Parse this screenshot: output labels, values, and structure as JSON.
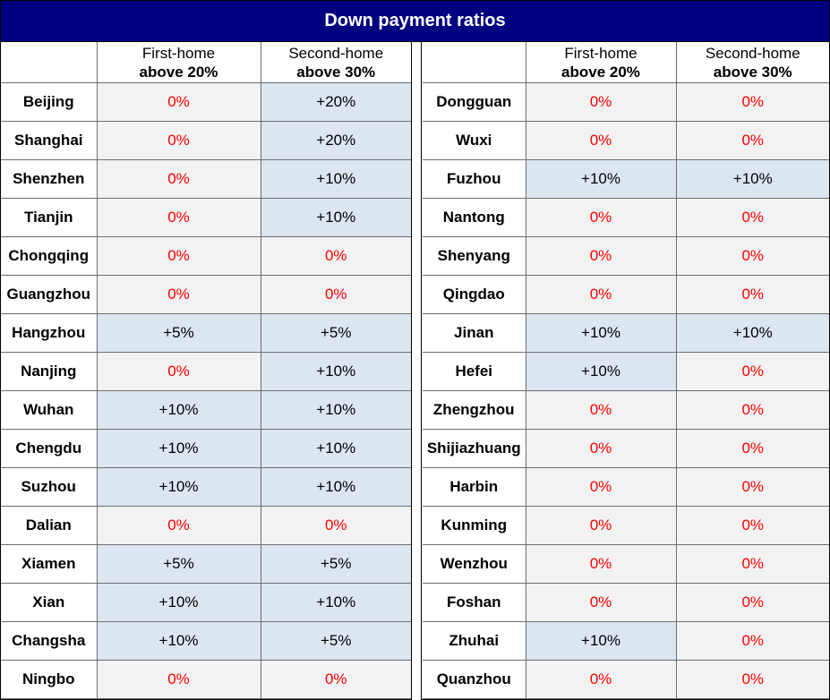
{
  "title": "Down payment ratios",
  "columns": {
    "first_home_line1": "First-home",
    "first_home_line2": "above 20%",
    "second_home_line1": "Second-home",
    "second_home_line2": "above 30%"
  },
  "colors": {
    "header_bg": "#000080",
    "highlight_bg": "#dce6f1",
    "plain_bg": "#f2f2f2",
    "zero_text": "#ff0000"
  },
  "left_rows": [
    {
      "city": "Beijing",
      "first": "0%",
      "second": "+20%"
    },
    {
      "city": "Shanghai",
      "first": "0%",
      "second": "+20%"
    },
    {
      "city": "Shenzhen",
      "first": "0%",
      "second": "+10%"
    },
    {
      "city": "Tianjin",
      "first": "0%",
      "second": "+10%"
    },
    {
      "city": "Chongqing",
      "first": "0%",
      "second": "0%"
    },
    {
      "city": "Guangzhou",
      "first": "0%",
      "second": "0%"
    },
    {
      "city": "Hangzhou",
      "first": "+5%",
      "second": "+5%"
    },
    {
      "city": "Nanjing",
      "first": "0%",
      "second": "+10%"
    },
    {
      "city": "Wuhan",
      "first": "+10%",
      "second": "+10%"
    },
    {
      "city": "Chengdu",
      "first": "+10%",
      "second": "+10%"
    },
    {
      "city": "Suzhou",
      "first": "+10%",
      "second": "+10%"
    },
    {
      "city": "Dalian",
      "first": "0%",
      "second": "0%"
    },
    {
      "city": "Xiamen",
      "first": "+5%",
      "second": "+5%"
    },
    {
      "city": "Xian",
      "first": "+10%",
      "second": "+10%"
    },
    {
      "city": "Changsha",
      "first": "+10%",
      "second": "+5%"
    },
    {
      "city": "Ningbo",
      "first": "0%",
      "second": "0%"
    }
  ],
  "right_rows": [
    {
      "city": "Dongguan",
      "first": "0%",
      "second": "0%"
    },
    {
      "city": "Wuxi",
      "first": "0%",
      "second": "0%"
    },
    {
      "city": "Fuzhou",
      "first": "+10%",
      "second": "+10%"
    },
    {
      "city": "Nantong",
      "first": "0%",
      "second": "0%"
    },
    {
      "city": "Shenyang",
      "first": "0%",
      "second": "0%"
    },
    {
      "city": "Qingdao",
      "first": "0%",
      "second": "0%"
    },
    {
      "city": "Jinan",
      "first": "+10%",
      "second": "+10%"
    },
    {
      "city": "Hefei",
      "first": "+10%",
      "second": "0%"
    },
    {
      "city": "Zhengzhou",
      "first": "0%",
      "second": "0%"
    },
    {
      "city": "Shijiazhuang",
      "first": "0%",
      "second": "0%"
    },
    {
      "city": "Harbin",
      "first": "0%",
      "second": "0%"
    },
    {
      "city": "Kunming",
      "first": "0%",
      "second": "0%"
    },
    {
      "city": "Wenzhou",
      "first": "0%",
      "second": "0%"
    },
    {
      "city": "Foshan",
      "first": "0%",
      "second": "0%"
    },
    {
      "city": "Zhuhai",
      "first": "+10%",
      "second": "0%"
    },
    {
      "city": "Quanzhou",
      "first": "0%",
      "second": "0%"
    }
  ]
}
